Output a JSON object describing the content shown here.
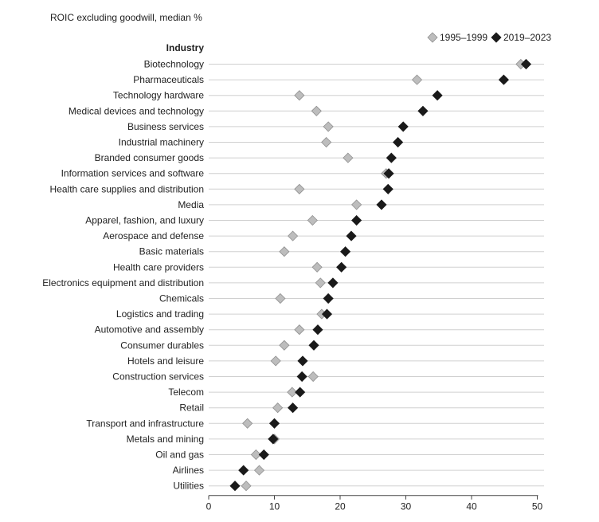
{
  "chart_data": {
    "type": "scatter",
    "title": "ROIC excluding goodwill, median %",
    "category_header": "Industry",
    "xlim": [
      0,
      50
    ],
    "x_ticks": [
      0,
      10,
      20,
      30,
      40,
      50
    ],
    "legend_position": "top-right",
    "categories": [
      "Biotechnology",
      "Pharmaceuticals",
      "Technology hardware",
      "Medical devices and technology",
      "Business services",
      "Industrial machinery",
      "Branded consumer goods",
      "Information services and software",
      "Health care supplies and distribution",
      "Media",
      "Apparel, fashion, and luxury",
      "Aerospace and defense",
      "Basic materials",
      "Health care providers",
      "Electronics equipment and distribution",
      "Chemicals",
      "Logistics and trading",
      "Automotive and assembly",
      "Consumer durables",
      "Hotels and leisure",
      "Construction services",
      "Telecom",
      "Retail",
      "Transport and infrastructure",
      "Metals and mining",
      "Oil and gas",
      "Airlines",
      "Utilities"
    ],
    "series": [
      {
        "name": "1995–1999",
        "color": "#bdbdbd",
        "stroke": "#8f8f8f",
        "values": [
          47.5,
          31.7,
          13.8,
          16.4,
          18.2,
          17.9,
          21.2,
          27.0,
          13.8,
          22.5,
          15.8,
          12.8,
          11.5,
          16.5,
          17.0,
          10.9,
          17.2,
          13.8,
          11.5,
          10.2,
          15.9,
          12.7,
          10.5,
          5.9,
          10.0,
          7.2,
          7.7,
          5.7
        ]
      },
      {
        "name": "2019–2023",
        "color": "#1a1a1a",
        "stroke": "#1a1a1a",
        "values": [
          48.3,
          44.9,
          34.8,
          32.6,
          29.6,
          28.8,
          27.8,
          27.4,
          27.3,
          26.3,
          22.5,
          21.7,
          20.8,
          20.2,
          18.9,
          18.2,
          18.0,
          16.6,
          16.0,
          14.3,
          14.2,
          13.9,
          12.8,
          10.0,
          9.8,
          8.4,
          5.3,
          4.0
        ]
      }
    ]
  }
}
